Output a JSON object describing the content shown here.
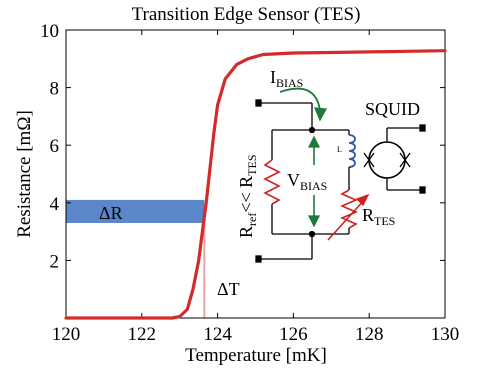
{
  "chart_data": {
    "type": "line",
    "title": "Transition Edge Sensor (TES)",
    "xlabel": "Temperature [mK]",
    "ylabel": "Resistance [mΩ]",
    "xlim": [
      120,
      130
    ],
    "ylim": [
      0,
      10
    ],
    "x_ticks": [
      120,
      122,
      124,
      126,
      128,
      130
    ],
    "y_ticks": [
      2,
      4,
      6,
      8,
      10
    ],
    "grid": false,
    "series": [
      {
        "color": "#d42a2a",
        "x": [
          120,
          121,
          122,
          122.8,
          123.0,
          123.2,
          123.35,
          123.5,
          123.6,
          123.7,
          123.8,
          123.9,
          124.0,
          124.2,
          124.5,
          124.8,
          125.2,
          126,
          127,
          128,
          129,
          130
        ],
        "y": [
          0,
          0,
          0,
          0,
          0.05,
          0.3,
          1.0,
          2.0,
          3.0,
          4.0,
          5.2,
          6.4,
          7.4,
          8.3,
          8.8,
          9.0,
          9.15,
          9.2,
          9.22,
          9.24,
          9.26,
          9.28
        ]
      }
    ],
    "annotations": {
      "delta_r": {
        "label": "ΔR",
        "y_range": [
          3.3,
          4.1
        ],
        "x_end": 123.65,
        "color": "#5b86c9"
      },
      "delta_t": {
        "label": "ΔT",
        "x": 123.65,
        "color": "#f0a0a0"
      }
    }
  },
  "circuit": {
    "i_bias_main": "I",
    "i_bias_sub": "BIAS",
    "v_bias_main": "V",
    "v_bias_sub": "BIAS",
    "r_tes_main": "R",
    "r_tes_sub": "TES",
    "r_ref_main": "R",
    "r_ref_sub": "ref",
    "r_ref_mid": "<< R",
    "r_ref_sub2": "TES",
    "inductor_label": "L",
    "squid_label": "SQUID"
  },
  "colors": {
    "arrow_green": "#1e7a3a",
    "inductor_blue": "#3355aa",
    "resistor_red": "#cc2222"
  }
}
